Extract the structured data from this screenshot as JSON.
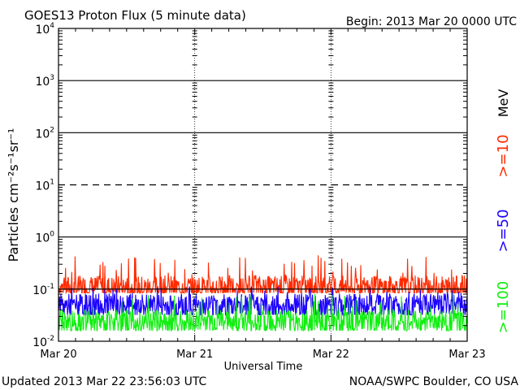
{
  "chart_data": {
    "type": "line",
    "title": "GOES13 Proton Flux (5 minute data)",
    "begin_label": "Begin: 2013 Mar 20 0000 UTC",
    "xlabel": "Universal Time",
    "ylabel": "Particles cm⁻²s⁻¹sr⁻¹",
    "unit_label": "MeV",
    "yscale": "log",
    "ylim": [
      0.01,
      10000
    ],
    "y_ticks": [
      {
        "base": "10",
        "exp": "4"
      },
      {
        "base": "10",
        "exp": "3"
      },
      {
        "base": "10",
        "exp": "2"
      },
      {
        "base": "10",
        "exp": "1"
      },
      {
        "base": "10",
        "exp": "0"
      },
      {
        "base": "10",
        "exp": "-1"
      },
      {
        "base": "10",
        "exp": "-2"
      }
    ],
    "x_ticks": [
      "Mar 20",
      "Mar 21",
      "Mar 22",
      "Mar 23"
    ],
    "x_range_days": [
      0,
      3
    ],
    "threshold_lines": [
      {
        "value": 10,
        "style": "dashed"
      },
      {
        "value": 0.1,
        "style": "solid"
      }
    ],
    "series": [
      {
        "name": ">=10",
        "color": "#ff2a00",
        "base": 0.1,
        "min": 0.085,
        "max": 0.45
      },
      {
        "name": ">=50",
        "color": "#1a00ff",
        "base": 0.045,
        "min": 0.032,
        "max": 0.115
      },
      {
        "name": ">=100",
        "color": "#11ee11",
        "base": 0.022,
        "min": 0.016,
        "max": 0.085
      }
    ],
    "grid": true
  },
  "footer": {
    "updated": "Updated 2013 Mar 22 23:56:03 UTC",
    "credit": "NOAA/SWPC Boulder, CO USA"
  }
}
